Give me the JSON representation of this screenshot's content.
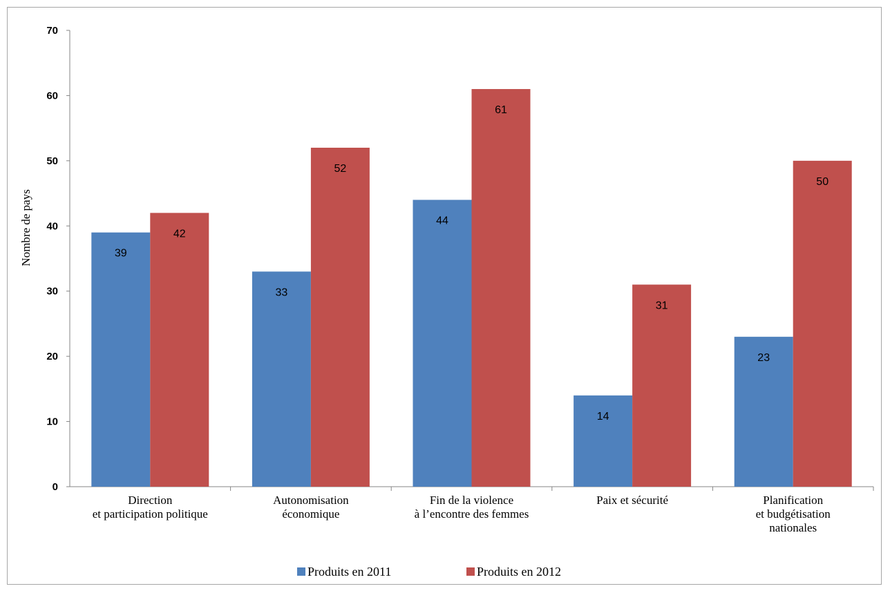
{
  "chart_data": {
    "type": "bar",
    "ylabel": "Nombre de pays",
    "ylim": [
      0,
      70
    ],
    "yticks": [
      0,
      10,
      20,
      30,
      40,
      50,
      60,
      70
    ],
    "grid": false,
    "legend_position": "bottom",
    "categories": [
      [
        "Direction",
        "et participation politique"
      ],
      [
        "Autonomisation",
        "économique"
      ],
      [
        "Fin de la violence",
        "à l’encontre des femmes"
      ],
      [
        "Paix et sécurité"
      ],
      [
        "Planification",
        "et budgétisation",
        "nationales"
      ]
    ],
    "series": [
      {
        "name": "Produits en 2011",
        "color": "#4f81bd",
        "values": [
          39,
          33,
          44,
          14,
          23
        ]
      },
      {
        "name": "Produits en 2012",
        "color": "#c0504d",
        "values": [
          42,
          52,
          61,
          31,
          50
        ]
      }
    ]
  }
}
